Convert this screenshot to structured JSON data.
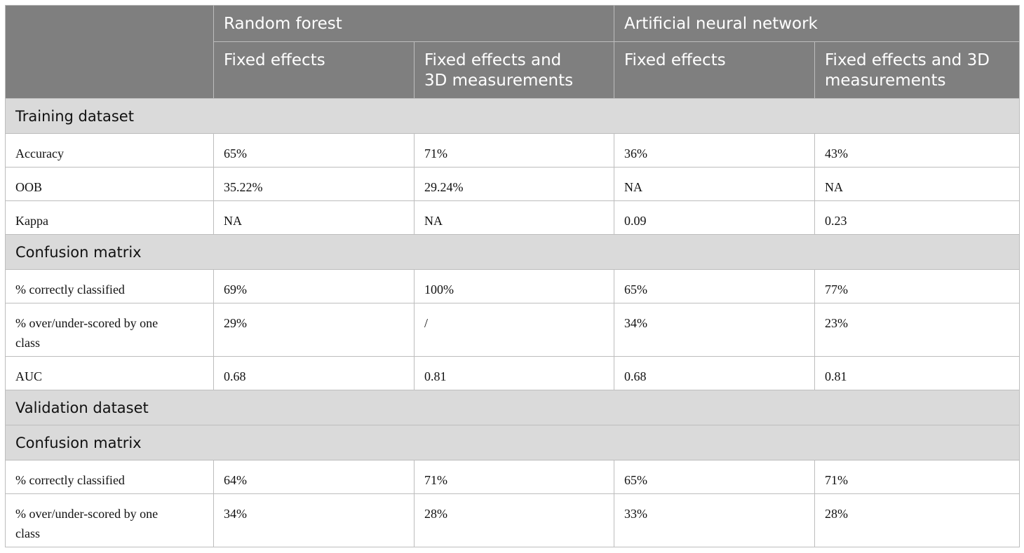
{
  "header": {
    "groups": [
      "Random forest",
      "Artificial neural network"
    ],
    "subheaders": [
      "Fixed effects",
      "Fixed effects and 3D measurements",
      "Fixed effects",
      "Fixed effects and 3D measurements"
    ]
  },
  "sections": {
    "training": "Training dataset",
    "confusion1": "Confusion matrix",
    "validation": "Validation dataset",
    "confusion2": "Confusion matrix"
  },
  "rows": {
    "accuracy": {
      "label": "Accuracy",
      "values": [
        "65%",
        "71%",
        "36%",
        "43%"
      ]
    },
    "oob": {
      "label": "OOB",
      "values": [
        "35.22%",
        "29.24%",
        "NA",
        "NA"
      ]
    },
    "kappa": {
      "label": "Kappa",
      "values": [
        "NA",
        "NA",
        "0.09",
        "0.23"
      ]
    },
    "correct_train": {
      "label": "% correctly classified",
      "values": [
        "69%",
        "100%",
        "65%",
        "77%"
      ]
    },
    "over_train": {
      "label": "% over/under-scored by one class",
      "values": [
        "29%",
        "/",
        "34%",
        "23%"
      ]
    },
    "auc": {
      "label": "AUC",
      "values": [
        "0.68",
        "0.81",
        "0.68",
        "0.81"
      ]
    },
    "correct_val": {
      "label": "% correctly classified",
      "values": [
        "64%",
        "71%",
        "65%",
        "71%"
      ]
    },
    "over_val": {
      "label": "% over/under-scored by one class",
      "values": [
        "34%",
        "28%",
        "33%",
        "28%"
      ]
    }
  }
}
